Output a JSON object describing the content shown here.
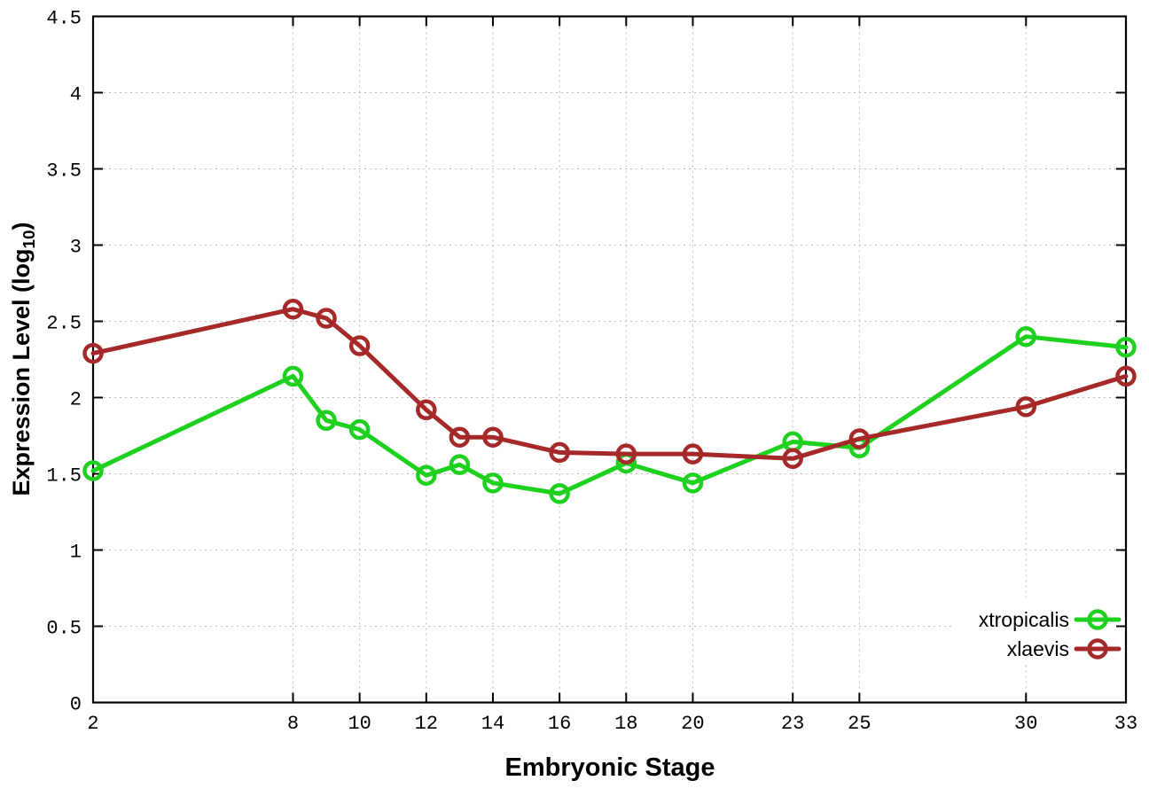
{
  "chart_data": {
    "type": "line",
    "title": "",
    "xlabel": "Embryonic Stage",
    "ylabel": "Expression Level (log10)",
    "ylabel_parts": {
      "main": "Expression Level (log",
      "sub": "10",
      "end": ")"
    },
    "x": [
      2,
      8,
      9,
      10,
      12,
      13,
      14,
      16,
      18,
      20,
      23,
      25,
      30,
      33
    ],
    "xticks": [
      2,
      8,
      10,
      12,
      14,
      16,
      18,
      20,
      23,
      25,
      30,
      33
    ],
    "yticks": [
      0,
      0.5,
      1,
      1.5,
      2,
      2.5,
      3,
      3.5,
      4,
      4.5
    ],
    "xlim": [
      2,
      33
    ],
    "ylim": [
      0,
      4.5
    ],
    "grid": true,
    "grid_style": "dotted",
    "legend_position": "bottom-right",
    "background": "#ffffff",
    "series": [
      {
        "name": "xtropicalis",
        "color": "#1fd11f",
        "marker": "open-circle",
        "values": [
          1.52,
          2.14,
          1.85,
          1.79,
          1.49,
          1.56,
          1.44,
          1.37,
          1.57,
          1.44,
          1.71,
          1.67,
          2.4,
          2.33
        ]
      },
      {
        "name": "xlaevis",
        "color": "#a62929",
        "marker": "open-circle",
        "values": [
          2.29,
          2.58,
          2.52,
          2.34,
          1.92,
          1.74,
          1.74,
          1.64,
          1.63,
          1.63,
          1.6,
          1.73,
          1.94,
          2.14
        ]
      }
    ]
  }
}
